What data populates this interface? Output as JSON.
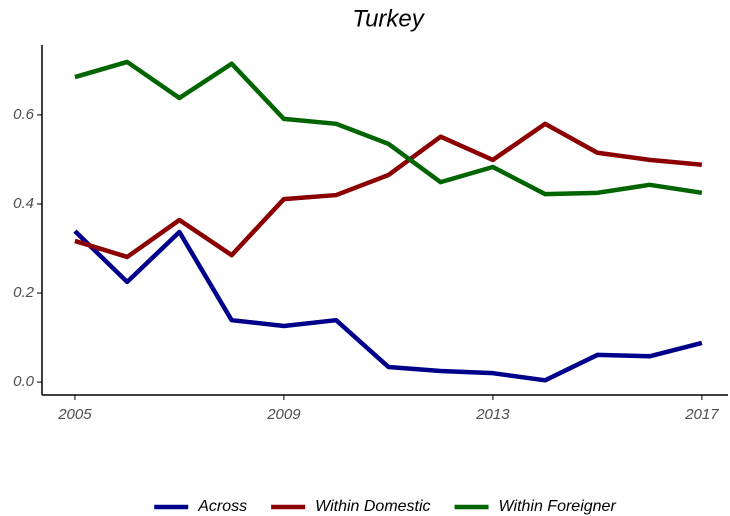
{
  "chart_data": {
    "type": "line",
    "title": "Turkey",
    "x": [
      2005,
      2006,
      2007,
      2008,
      2009,
      2010,
      2011,
      2012,
      2013,
      2014,
      2015,
      2016,
      2017
    ],
    "series": [
      {
        "name": "Across",
        "color": "#00008b",
        "values": [
          0.339,
          0.225,
          0.337,
          0.139,
          0.126,
          0.139,
          0.034,
          0.025,
          0.02,
          0.004,
          0.061,
          0.058,
          0.088
        ]
      },
      {
        "name": "Within Domestic",
        "color": "#8b0000",
        "values": [
          0.317,
          0.281,
          0.364,
          0.285,
          0.411,
          0.42,
          0.465,
          0.551,
          0.499,
          0.58,
          0.515,
          0.499,
          0.488
        ]
      },
      {
        "name": "Within Foreigner",
        "color": "#006400",
        "values": [
          0.685,
          0.719,
          0.638,
          0.715,
          0.591,
          0.58,
          0.535,
          0.449,
          0.483,
          0.422,
          0.425,
          0.443,
          0.425
        ]
      }
    ],
    "xlim": [
      2004.37,
      2017.5
    ],
    "xticks": [
      2005,
      2009,
      2013,
      2017
    ],
    "ylim": [
      -0.029,
      0.757
    ],
    "yticks": [
      {
        "value": 0,
        "label": "0.0"
      },
      0.2,
      0.4,
      0.6
    ],
    "legend": "bottom"
  }
}
